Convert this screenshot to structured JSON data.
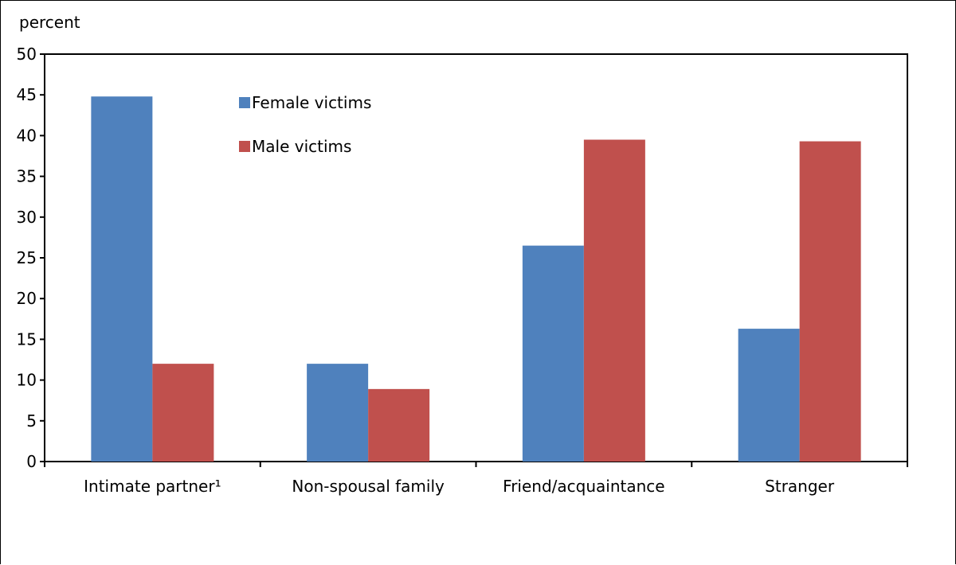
{
  "chart_data": {
    "type": "bar",
    "ylabel": "percent",
    "ylim": [
      0,
      50
    ],
    "yticks": [
      "0",
      "5",
      "10",
      "15",
      "20",
      "25",
      "30",
      "35",
      "40",
      "45",
      "50"
    ],
    "categories": [
      "Intimate partner¹",
      "Non-spousal family",
      "Friend/acquaintance",
      "Stranger"
    ],
    "series": [
      {
        "name": "Female victims",
        "color": "#4f81bd",
        "values": [
          44.8,
          12.0,
          26.5,
          16.3
        ]
      },
      {
        "name": "Male victims",
        "color": "#c0504d",
        "values": [
          12.0,
          8.9,
          39.5,
          39.3
        ]
      }
    ],
    "grid": false,
    "legend_position": "top-left inside plot"
  }
}
